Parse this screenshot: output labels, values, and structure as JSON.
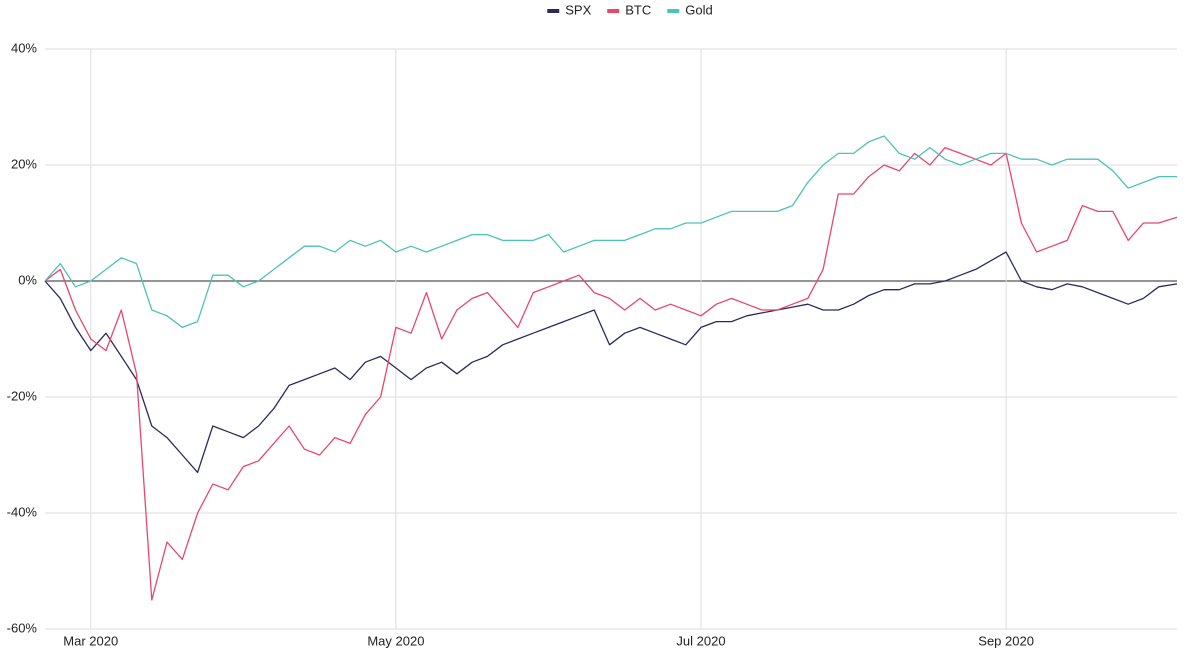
{
  "chart_data": {
    "type": "line",
    "x": [
      2.7,
      2.8,
      2.9,
      3.0,
      3.1,
      3.2,
      3.3,
      3.4,
      3.5,
      3.6,
      3.7,
      3.8,
      3.9,
      4.0,
      4.1,
      4.2,
      4.3,
      4.4,
      4.5,
      4.6,
      4.7,
      4.8,
      4.9,
      5.0,
      5.1,
      5.2,
      5.3,
      5.4,
      5.5,
      5.6,
      5.7,
      5.8,
      5.9,
      6.0,
      6.1,
      6.2,
      6.3,
      6.4,
      6.5,
      6.6,
      6.7,
      6.8,
      6.9,
      7.0,
      7.1,
      7.2,
      7.3,
      7.4,
      7.5,
      7.6,
      7.7,
      7.8,
      7.9,
      8.0,
      8.1,
      8.2,
      8.3,
      8.4,
      8.5,
      8.6,
      8.7,
      8.8,
      8.9,
      9.0,
      9.1,
      9.2,
      9.3,
      9.4,
      9.5,
      9.6,
      9.7,
      9.8,
      9.9,
      10.0,
      10.12
    ],
    "series": [
      {
        "name": "SPX",
        "color": "#2b2a5e",
        "values": [
          0,
          -3,
          -8,
          -12,
          -9,
          -13,
          -17,
          -25,
          -27,
          -30,
          -33,
          -25,
          -26,
          -27,
          -25,
          -22,
          -18,
          -17,
          -16,
          -15,
          -17,
          -14,
          -13,
          -15,
          -17,
          -15,
          -14,
          -16,
          -14,
          -13,
          -11,
          -10,
          -9,
          -8,
          -7,
          -6,
          -5,
          -11,
          -9,
          -8,
          -9,
          -10,
          -11,
          -8,
          -7,
          -7,
          -6,
          -5.5,
          -5,
          -4.5,
          -4,
          -5,
          -5,
          -4,
          -2.5,
          -1.5,
          -1.5,
          -0.5,
          -0.5,
          0,
          1,
          2,
          3.5,
          5,
          0,
          -1,
          -1.5,
          -0.5,
          -1,
          -2,
          -3,
          -4,
          -3,
          -1,
          -0.5
        ]
      },
      {
        "name": "BTC",
        "color": "#e8476a",
        "values": [
          0,
          2,
          -5,
          -10,
          -12,
          -5,
          -16,
          -55,
          -45,
          -48,
          -40,
          -35,
          -36,
          -32,
          -31,
          -28,
          -25,
          -29,
          -30,
          -27,
          -28,
          -23,
          -20,
          -8,
          -9,
          -2,
          -10,
          -5,
          -3,
          -2,
          -5,
          -8,
          -2,
          -1,
          0,
          1,
          -2,
          -3,
          -5,
          -3,
          -5,
          -4,
          -5,
          -6,
          -4,
          -3,
          -4,
          -5,
          -5,
          -4,
          -3,
          2,
          15,
          15,
          18,
          20,
          19,
          22,
          20,
          23,
          22,
          21,
          20,
          22,
          10,
          5,
          6,
          7,
          13,
          12,
          12,
          7,
          10,
          10,
          11
        ]
      },
      {
        "name": "Gold",
        "color": "#4cc2bb",
        "values": [
          0,
          3,
          -1,
          0,
          2,
          4,
          3,
          -5,
          -6,
          -8,
          -7,
          1,
          1,
          -1,
          0,
          2,
          4,
          6,
          6,
          5,
          7,
          6,
          7,
          5,
          6,
          5,
          6,
          7,
          8,
          8,
          7,
          7,
          7,
          8,
          5,
          6,
          7,
          7,
          7,
          8,
          9,
          9,
          10,
          10,
          11,
          12,
          12,
          12,
          12,
          13,
          17,
          20,
          22,
          22,
          24,
          25,
          22,
          21,
          23,
          21,
          20,
          21,
          22,
          22,
          21,
          21,
          20,
          21,
          21,
          21,
          19,
          16,
          17,
          18,
          18
        ]
      }
    ],
    "xlim": [
      2.7,
      10.12
    ],
    "xticks": [
      {
        "value": 3,
        "label": "Mar 2020"
      },
      {
        "value": 5,
        "label": "May 2020"
      },
      {
        "value": 7,
        "label": "Jul 2020"
      },
      {
        "value": 9,
        "label": "Sep 2020"
      }
    ],
    "ylim": [
      -60,
      40
    ],
    "yticks": [
      {
        "value": -60,
        "label": "-60%"
      },
      {
        "value": -40,
        "label": "-40%"
      },
      {
        "value": -20,
        "label": "-20%"
      },
      {
        "value": 0,
        "label": "0%"
      },
      {
        "value": 20,
        "label": "20%"
      },
      {
        "value": 40,
        "label": "40%"
      }
    ],
    "grid": true,
    "legend": "top"
  }
}
